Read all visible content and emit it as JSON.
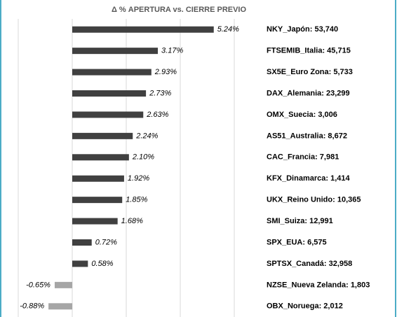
{
  "chart_data": {
    "type": "bar",
    "orientation": "horizontal",
    "title": "Δ % APERTURA vs. CIERRE PREVIO",
    "categories": [
      "NKY_Japón: 53,740",
      "FTSEMIB_Italia: 45,715",
      "SX5E_Euro Zona: 5,733",
      "DAX_Alemania: 23,299",
      "OMX_Suecia: 3,006",
      "AS51_Australia: 8,672",
      "CAC_Francia: 7,981",
      "KFX_Dinamarca: 1,414",
      "UKX_Reino Unido: 10,365",
      "SMI_Suiza: 12,991",
      "SPX_EUA: 6,575",
      "SPTSX_Canadá: 32,958",
      "NZSE_Nueva Zelanda: 1,803",
      "OBX_Noruega: 2,012"
    ],
    "values": [
      5.24,
      3.17,
      2.93,
      2.73,
      2.63,
      2.24,
      2.1,
      1.92,
      1.85,
      1.68,
      0.72,
      0.58,
      -0.65,
      -0.88
    ],
    "value_labels": [
      "5.24%",
      "3.17%",
      "2.93%",
      "2.73%",
      "2.63%",
      "2.24%",
      "2.10%",
      "1.92%",
      "1.85%",
      "1.68%",
      "0.72%",
      "0.58%",
      "-0.65%",
      "-0.88%"
    ],
    "color": "#404040",
    "negative_color": "#a6a6a6",
    "xlim": [
      -2,
      6
    ],
    "xticks": [
      -2,
      0,
      2,
      4,
      6
    ],
    "grid": true
  }
}
